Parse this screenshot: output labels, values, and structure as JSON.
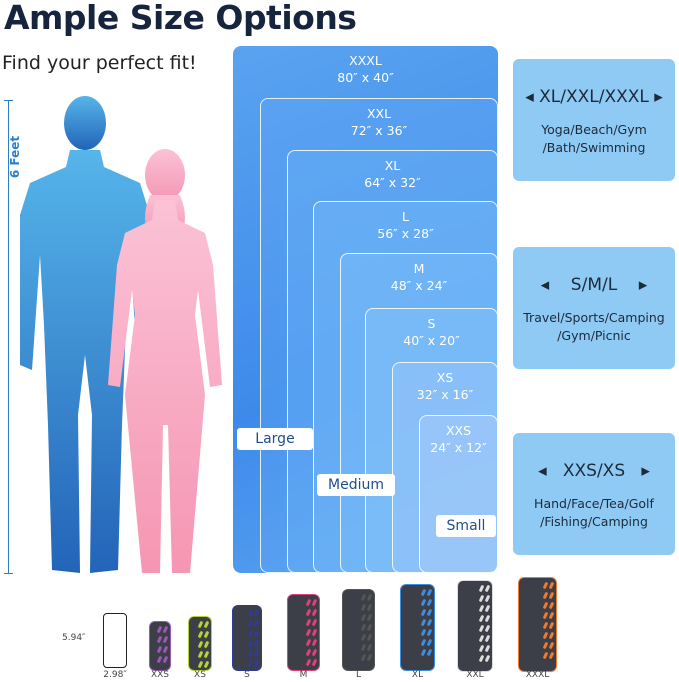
{
  "title": "Ample Size Options",
  "subtitle": "Find your perfect fit!",
  "height_label": "6 Feet",
  "sizes": [
    {
      "name": "XXXL",
      "dims": "80″ x 40″"
    },
    {
      "name": "XXL",
      "dims": "72″ x 36″"
    },
    {
      "name": "XL",
      "dims": "64″ x 32″"
    },
    {
      "name": "L",
      "dims": "56″ x 28″"
    },
    {
      "name": "M",
      "dims": "48″ x 24″"
    },
    {
      "name": "S",
      "dims": "40″ x 20″"
    },
    {
      "name": "XS",
      "dims": "32″ x 16″"
    },
    {
      "name": "XXS",
      "dims": "24″ x 12″"
    }
  ],
  "groups": {
    "large": "Large",
    "medium": "Medium",
    "small": "Small"
  },
  "panels": [
    {
      "heading": "◂ XL/XXL/XXXL ▸",
      "uses": "Yoga/Beach/Gym /Bath/Swimming"
    },
    {
      "heading": "◂    S/M/L    ▸",
      "uses": "Travel/Sports/Camping /Gym/Picnic"
    },
    {
      "heading": "◂   XXS/XS   ▸",
      "uses": "Hand/Face/Tea/Golf /Fishing/Camping"
    }
  ],
  "phone": {
    "height": "5.94″",
    "width": "2.98″"
  },
  "towels": [
    {
      "label": "XXS",
      "color": "#9b59b6"
    },
    {
      "label": "XS",
      "color": "#b5d334"
    },
    {
      "label": "S",
      "color": "#2e3a9c"
    },
    {
      "label": "M",
      "color": "#e0407e"
    },
    {
      "label": "L",
      "color": "#555555"
    },
    {
      "label": "XL",
      "color": "#3a8fe0"
    },
    {
      "label": "XXL",
      "color": "#dddddd"
    },
    {
      "label": "XXXL",
      "color": "#f07a30"
    }
  ],
  "colors": {
    "title": "#17243d",
    "box": "#4a95ec",
    "panel": "#8fcaf5",
    "man": "#2f86d6",
    "woman": "#f7a8c4"
  }
}
